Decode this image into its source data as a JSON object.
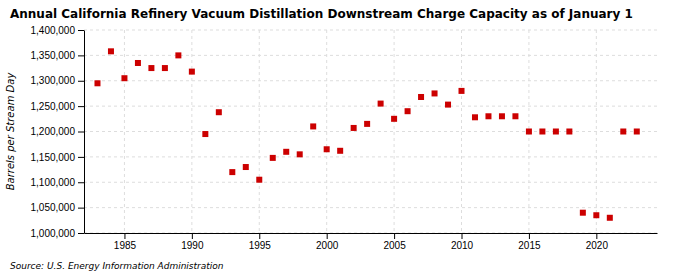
{
  "chart_data": {
    "type": "scatter",
    "title": "Annual California Refinery Vacuum Distillation Downstream Charge Capacity as of January 1",
    "ylabel": "Barrels per Stream Day",
    "annotation": "Source: U.S. Energy Information Administration",
    "x": [
      1983,
      1984,
      1985,
      1986,
      1987,
      1988,
      1989,
      1990,
      1991,
      1992,
      1993,
      1994,
      1995,
      1996,
      1997,
      1998,
      1999,
      2000,
      2001,
      2002,
      2003,
      2004,
      2005,
      2006,
      2007,
      2008,
      2009,
      2010,
      2011,
      2012,
      2013,
      2014,
      2015,
      2016,
      2017,
      2018,
      2019,
      2020,
      2021,
      2022,
      2023
    ],
    "values": [
      1295000,
      1358000,
      1305000,
      1335000,
      1325000,
      1325000,
      1350000,
      1318000,
      1195000,
      1238000,
      1120000,
      1130000,
      1105000,
      1148000,
      1160000,
      1155000,
      1210000,
      1165000,
      1162000,
      1207000,
      1215000,
      1255000,
      1225000,
      1240000,
      1268000,
      1275000,
      1253000,
      1280000,
      1228000,
      1230000,
      1230000,
      1230000,
      1200000,
      1200000,
      1200000,
      1200000,
      1040000,
      1035000,
      1030000,
      1200000,
      1200000
    ],
    "color": "#cc0000",
    "marker": "square",
    "xlim": [
      1982,
      2024.5
    ],
    "xticks": [
      1985,
      1990,
      1995,
      2000,
      2005,
      2010,
      2015,
      2020
    ],
    "ylim": [
      1000000,
      1400000
    ],
    "yticks": [
      {
        "value": 1000000,
        "label": "1,000,000"
      },
      {
        "value": 1050000,
        "label": "1,050,000"
      },
      {
        "value": 1100000,
        "label": "1,100,000"
      },
      {
        "value": 1150000,
        "label": "1,150,000"
      },
      {
        "value": 1200000,
        "label": "1,200,000"
      },
      {
        "value": 1250000,
        "label": "1,250,000"
      },
      {
        "value": 1300000,
        "label": "1,300,000"
      },
      {
        "value": 1350000,
        "label": "1,350,000"
      },
      {
        "value": 1400000,
        "label": "1,400,000"
      }
    ],
    "grid": true
  }
}
